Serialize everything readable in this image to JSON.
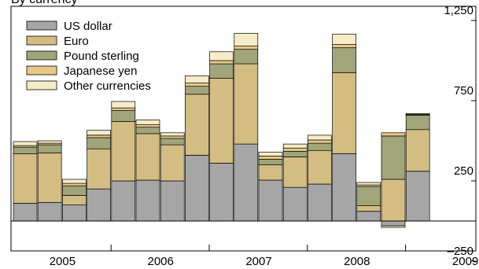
{
  "chart_data": {
    "type": "bar",
    "stacked": true,
    "title": "By currency",
    "xlabel": "",
    "ylabel": "",
    "ylim": [
      -300,
      1600
    ],
    "y_ticks": [
      1250,
      750,
      250,
      -250
    ],
    "y_tick_labels": [
      "1,250",
      "750",
      "250",
      "–250"
    ],
    "grid": false,
    "legend_position": "top-left",
    "x_groups": [
      {
        "label": "2005",
        "bars": 4
      },
      {
        "label": "2006",
        "bars": 4
      },
      {
        "label": "2007",
        "bars": 4
      },
      {
        "label": "2008",
        "bars": 4
      },
      {
        "label": "2009",
        "bars": 2
      }
    ],
    "categories": [
      "2005 Q1",
      "2005 Q2",
      "2005 Q3",
      "2005 Q4",
      "2006 Q1",
      "2006 Q2",
      "2006 Q3",
      "2006 Q4",
      "2007 Q1",
      "2007 Q2",
      "2007 Q3",
      "2007 Q4",
      "2008 Q1",
      "2008 Q2",
      "2008 Q3",
      "2008 Q4",
      "2009 Q1",
      "2009 Q2"
    ],
    "series": [
      {
        "name": "US dollar",
        "color": "#a6a6a6",
        "values": [
          110,
          115,
          100,
          200,
          250,
          255,
          250,
          410,
          360,
          480,
          255,
          210,
          230,
          420,
          60,
          -30,
          310,
          0
        ]
      },
      {
        "name": "Euro",
        "color": "#d4bd82",
        "values": [
          310,
          310,
          60,
          250,
          370,
          290,
          225,
          380,
          530,
          500,
          95,
          190,
          210,
          505,
          35,
          260,
          260,
          0
        ]
      },
      {
        "name": "Pound sterling",
        "color": "#a0a57a",
        "values": [
          40,
          50,
          60,
          70,
          70,
          40,
          40,
          50,
          90,
          90,
          35,
          35,
          45,
          155,
          120,
          270,
          90,
          0
        ]
      },
      {
        "name": "Japanese yen",
        "color": "#e8c888",
        "values": [
          10,
          10,
          15,
          15,
          15,
          15,
          15,
          20,
          20,
          20,
          20,
          20,
          20,
          20,
          10,
          20,
          5,
          0
        ]
      },
      {
        "name": "Other currencies",
        "color": "#f5ecc8",
        "values": [
          25,
          15,
          25,
          30,
          40,
          30,
          20,
          45,
          55,
          80,
          25,
          25,
          30,
          65,
          15,
          -10,
          5,
          0
        ]
      }
    ]
  }
}
